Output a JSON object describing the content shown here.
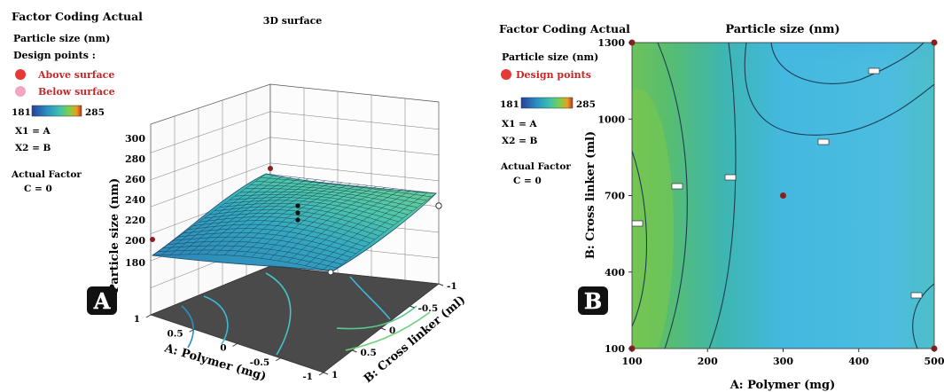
{
  "panel_a": {
    "legend": {
      "title": "Factor Coding Actual",
      "response": "Particle size (nm)",
      "design_points_label": "Design points :",
      "above": "Above surface",
      "below": "Below surface",
      "scale_min": "181",
      "scale_max": "285",
      "x1": "X1 = A",
      "x2": "X2 = B",
      "actual_factor": "Actual Factor",
      "c": "C = 0",
      "above_color": "#e53935",
      "below_color": "#f4a6c0"
    },
    "badge": "A"
  },
  "panel_b": {
    "legend": {
      "title": "Factor Coding Actual",
      "response": "Particle size (nm)",
      "design_points_label": "Design points",
      "scale_min": "181",
      "scale_max": "285",
      "x1": "X1 = A",
      "x2": "X2 = B",
      "actual_factor": "Actual Factor",
      "c": "C = 0",
      "point_color": "#e53935"
    },
    "badge": "B"
  },
  "chart_data": [
    {
      "type": "surface",
      "title": "3D surface",
      "xlabel": "A: Polymer (mg)",
      "ylabel": "B: Cross linker (ml)",
      "zlabel": "Particle size (nm)",
      "x_ticks": [
        "1",
        "0.5",
        "0",
        "-0.5",
        "-1"
      ],
      "y_ticks": [
        "-1",
        "-0.5",
        "0",
        "0.5",
        "1"
      ],
      "z_ticks": [
        "180",
        "200",
        "220",
        "240",
        "260",
        "280",
        "300"
      ],
      "zlim": [
        180,
        300
      ],
      "colormap": [
        "#2a3f9a",
        "#2a8fc2",
        "#3cc0b0",
        "#7ccf4a",
        "#e8a020",
        "#c0341c"
      ]
    },
    {
      "type": "contour",
      "title": "Particle size (nm)",
      "xlabel": "A: Polymer (mg)",
      "ylabel": "B: Cross linker (ml)",
      "xlim": [
        100,
        500
      ],
      "ylim": [
        100,
        1300
      ],
      "x_ticks": [
        100,
        200,
        300,
        400,
        500
      ],
      "y_ticks": [
        100,
        400,
        700,
        1000,
        1300
      ],
      "design_points": [
        {
          "x": 100,
          "y": 100
        },
        {
          "x": 500,
          "y": 100
        },
        {
          "x": 100,
          "y": 1300
        },
        {
          "x": 500,
          "y": 1300
        },
        {
          "x": 300,
          "y": 700
        }
      ]
    }
  ]
}
